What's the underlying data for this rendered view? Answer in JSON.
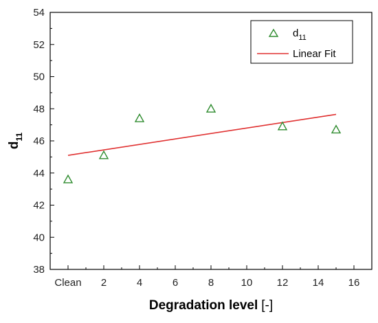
{
  "chart_data": {
    "type": "scatter",
    "title": "",
    "xlabel": "Degradation level",
    "xlabel_unit": "[-]",
    "ylabel": "d",
    "ylabel_sub": "11",
    "xlim": [
      -1,
      17
    ],
    "ylim": [
      38,
      54
    ],
    "x_ticks": [
      0,
      2,
      4,
      6,
      8,
      10,
      12,
      14,
      16
    ],
    "x_tick_labels": [
      "Clean",
      "2",
      "4",
      "6",
      "8",
      "10",
      "12",
      "14",
      "16"
    ],
    "y_ticks": [
      38,
      40,
      42,
      44,
      46,
      48,
      50,
      52,
      54
    ],
    "y_tick_labels": [
      "38",
      "40",
      "42",
      "44",
      "46",
      "48",
      "50",
      "52",
      "54"
    ],
    "grid": false,
    "legend_position": "top-right",
    "series": [
      {
        "name": "d",
        "name_sub": "11",
        "kind": "scatter",
        "marker": "triangle-open",
        "color": "#2e8b2e",
        "x": [
          0,
          2,
          4,
          8,
          12,
          15
        ],
        "y": [
          43.6,
          45.1,
          47.4,
          48.0,
          46.9,
          46.7
        ]
      },
      {
        "name": "Linear Fit",
        "kind": "line",
        "color": "#e03030",
        "x": [
          0,
          15
        ],
        "y": [
          45.1,
          47.65
        ]
      }
    ]
  }
}
